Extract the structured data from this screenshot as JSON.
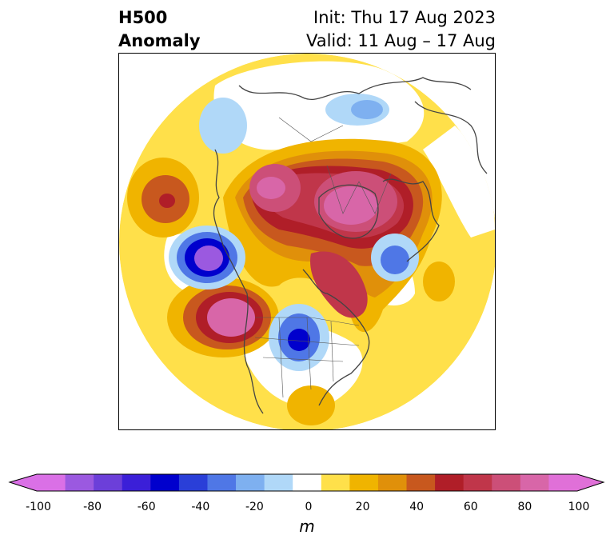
{
  "header": {
    "title_line1": "H500",
    "title_line2": "Anomaly",
    "init_text": "Init: Thu 17 Aug 2023",
    "valid_text": "Valid: 11 Aug – 17 Aug"
  },
  "colorbar": {
    "unit": "m",
    "ticks": [
      "-100",
      "-80",
      "-60",
      "-40",
      "-20",
      "0",
      "20",
      "40",
      "60",
      "80",
      "100"
    ],
    "levels": [
      -100,
      -90,
      -80,
      -70,
      -60,
      -50,
      -40,
      -30,
      -20,
      -10,
      10,
      20,
      30,
      40,
      50,
      60,
      70,
      80,
      90,
      100
    ],
    "colors": [
      "#da70e6",
      "#9b59e0",
      "#6c3fd9",
      "#3b1fd8",
      "#0000cd",
      "#2a3fd8",
      "#4f77e6",
      "#7eb0f0",
      "#b0d8f8",
      "#ffffff",
      "#ffe04a",
      "#f0b400",
      "#e0900a",
      "#c8581e",
      "#b01e28",
      "#c0364a",
      "#cc4f78",
      "#d866a8",
      "#e070d8"
    ],
    "under_color": "#da70e6",
    "over_color": "#e070d8"
  },
  "map": {
    "projection": "polar-stereographic",
    "region": "Northern Hemisphere"
  }
}
